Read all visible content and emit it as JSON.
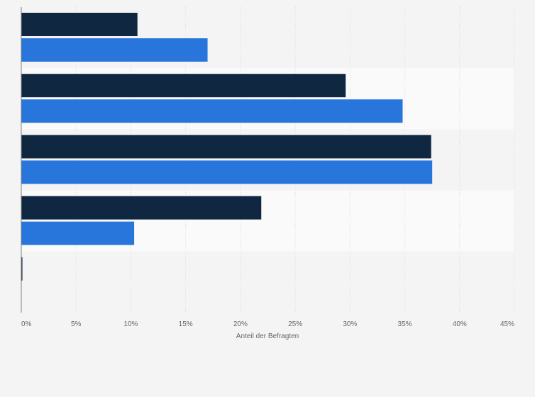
{
  "chart_data": {
    "type": "bar",
    "orientation": "horizontal",
    "title": "",
    "xlabel": "Anteil der Befragten",
    "ylabel": "",
    "xlim": [
      0,
      45
    ],
    "ticks": [
      0,
      5,
      10,
      15,
      20,
      25,
      30,
      35,
      40,
      45
    ],
    "tick_labels": [
      "0%",
      "5%",
      "10%",
      "15%",
      "20%",
      "25%",
      "30%",
      "35%",
      "40%",
      "45%"
    ],
    "grid": true,
    "categories": [
      "",
      "",
      "",
      "",
      ""
    ],
    "series": [
      {
        "values": [
          10.6,
          29.6,
          37.4,
          21.9,
          0.1
        ],
        "color": "#0f2741"
      },
      {
        "values": [
          17.0,
          34.8,
          37.5,
          10.3,
          0
        ],
        "color": "#2875dc"
      }
    ],
    "band_colors": [
      "#f4f4f4",
      "#fafafa"
    ]
  }
}
